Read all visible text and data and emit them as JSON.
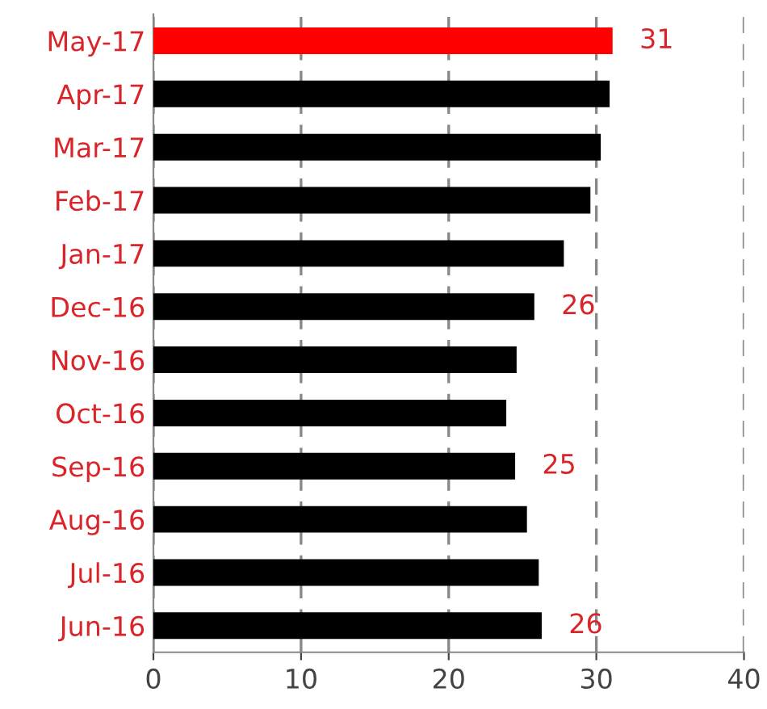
{
  "chart_data": {
    "type": "bar",
    "orientation": "horizontal",
    "categories": [
      "May-17",
      "Apr-17",
      "Mar-17",
      "Feb-17",
      "Jan-17",
      "Dec-16",
      "Nov-16",
      "Oct-16",
      "Sep-16",
      "Aug-16",
      "Jul-16",
      "Jun-16"
    ],
    "values": [
      31.1,
      30.9,
      30.3,
      29.6,
      27.8,
      25.8,
      24.6,
      23.9,
      24.5,
      25.3,
      26.1,
      26.3
    ],
    "colors": [
      "#ff0000",
      "#000000",
      "#000000",
      "#000000",
      "#000000",
      "#000000",
      "#000000",
      "#000000",
      "#000000",
      "#000000",
      "#000000",
      "#000000"
    ],
    "value_labels": [
      "31",
      null,
      null,
      null,
      null,
      "26",
      null,
      null,
      "25",
      null,
      null,
      "26"
    ],
    "xlim": [
      0,
      40
    ],
    "xticks": [
      0,
      10,
      20,
      30,
      40
    ],
    "grid": "x"
  }
}
